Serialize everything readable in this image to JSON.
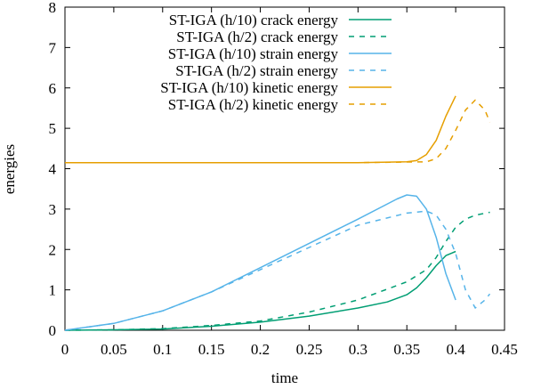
{
  "chart_data": {
    "type": "line",
    "xlabel": "time",
    "ylabel": "energies",
    "xlim": [
      0,
      0.45
    ],
    "ylim": [
      0,
      8
    ],
    "x_ticks": [
      "0",
      "0.05",
      "0.1",
      "0.15",
      "0.2",
      "0.25",
      "0.3",
      "0.35",
      "0.4",
      "0.45"
    ],
    "y_ticks": [
      "0",
      "1",
      "2",
      "3",
      "4",
      "5",
      "6",
      "7",
      "8"
    ],
    "legend_position": "top-left",
    "grid": false,
    "series": [
      {
        "name": "ST-IGA (h/10) crack energy",
        "color": "#009e73",
        "dash": "solid",
        "points": [
          [
            0,
            0
          ],
          [
            0.05,
            0.01
          ],
          [
            0.1,
            0.03
          ],
          [
            0.15,
            0.1
          ],
          [
            0.2,
            0.2
          ],
          [
            0.25,
            0.35
          ],
          [
            0.3,
            0.55
          ],
          [
            0.33,
            0.7
          ],
          [
            0.35,
            0.88
          ],
          [
            0.36,
            1.05
          ],
          [
            0.37,
            1.3
          ],
          [
            0.38,
            1.6
          ],
          [
            0.39,
            1.85
          ],
          [
            0.4,
            1.95
          ]
        ]
      },
      {
        "name": "ST-IGA (h/2) crack energy",
        "color": "#009e73",
        "dash": "dashed",
        "points": [
          [
            0,
            0
          ],
          [
            0.05,
            0.01
          ],
          [
            0.1,
            0.04
          ],
          [
            0.15,
            0.12
          ],
          [
            0.2,
            0.23
          ],
          [
            0.25,
            0.45
          ],
          [
            0.3,
            0.75
          ],
          [
            0.35,
            1.2
          ],
          [
            0.37,
            1.5
          ],
          [
            0.38,
            1.8
          ],
          [
            0.39,
            2.2
          ],
          [
            0.4,
            2.55
          ],
          [
            0.41,
            2.75
          ],
          [
            0.42,
            2.85
          ],
          [
            0.435,
            2.92
          ]
        ]
      },
      {
        "name": "ST-IGA (h/10) strain energy",
        "color": "#56b4e9",
        "dash": "solid",
        "points": [
          [
            0,
            0
          ],
          [
            0.05,
            0.17
          ],
          [
            0.1,
            0.48
          ],
          [
            0.15,
            0.95
          ],
          [
            0.2,
            1.55
          ],
          [
            0.25,
            2.15
          ],
          [
            0.3,
            2.75
          ],
          [
            0.34,
            3.25
          ],
          [
            0.35,
            3.35
          ],
          [
            0.36,
            3.32
          ],
          [
            0.37,
            3.0
          ],
          [
            0.38,
            2.3
          ],
          [
            0.39,
            1.4
          ],
          [
            0.4,
            0.75
          ]
        ]
      },
      {
        "name": "ST-IGA (h/2) strain energy",
        "color": "#56b4e9",
        "dash": "dashed",
        "points": [
          [
            0,
            0
          ],
          [
            0.05,
            0.17
          ],
          [
            0.1,
            0.48
          ],
          [
            0.15,
            0.95
          ],
          [
            0.2,
            1.5
          ],
          [
            0.25,
            2.05
          ],
          [
            0.3,
            2.6
          ],
          [
            0.35,
            2.9
          ],
          [
            0.37,
            2.95
          ],
          [
            0.38,
            2.85
          ],
          [
            0.39,
            2.5
          ],
          [
            0.4,
            1.9
          ],
          [
            0.41,
            1.0
          ],
          [
            0.42,
            0.55
          ],
          [
            0.43,
            0.75
          ],
          [
            0.435,
            0.9
          ]
        ]
      },
      {
        "name": "ST-IGA (h/10) kinetic energy",
        "color": "#e69f00",
        "dash": "solid",
        "points": [
          [
            0,
            4.15
          ],
          [
            0.1,
            4.15
          ],
          [
            0.2,
            4.15
          ],
          [
            0.3,
            4.15
          ],
          [
            0.35,
            4.17
          ],
          [
            0.36,
            4.2
          ],
          [
            0.37,
            4.35
          ],
          [
            0.38,
            4.7
          ],
          [
            0.39,
            5.3
          ],
          [
            0.4,
            5.8
          ]
        ]
      },
      {
        "name": "ST-IGA (h/2) kinetic energy",
        "color": "#e69f00",
        "dash": "dashed",
        "points": [
          [
            0,
            4.15
          ],
          [
            0.1,
            4.15
          ],
          [
            0.2,
            4.15
          ],
          [
            0.3,
            4.15
          ],
          [
            0.37,
            4.17
          ],
          [
            0.38,
            4.25
          ],
          [
            0.39,
            4.5
          ],
          [
            0.4,
            4.95
          ],
          [
            0.41,
            5.45
          ],
          [
            0.42,
            5.7
          ],
          [
            0.43,
            5.45
          ],
          [
            0.435,
            5.15
          ]
        ]
      }
    ]
  }
}
